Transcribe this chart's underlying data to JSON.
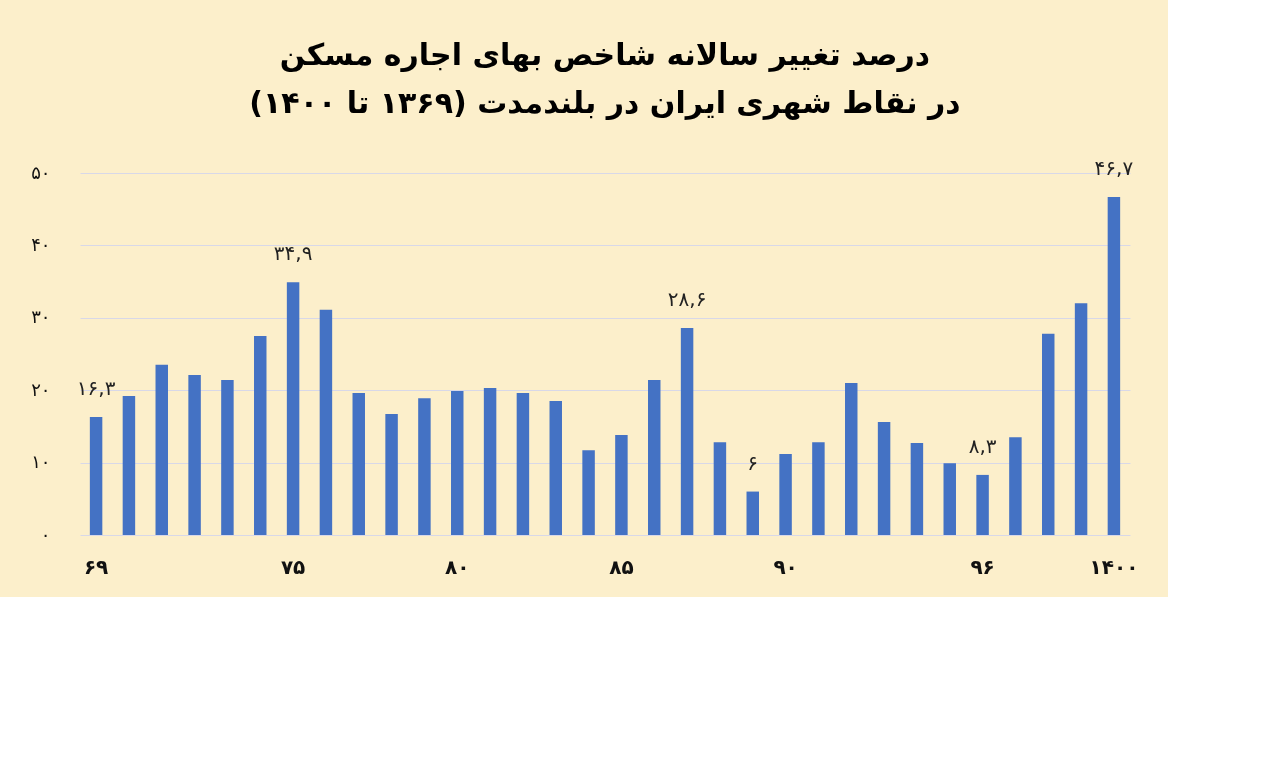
{
  "chart_data": {
    "type": "bar",
    "title": "درصد تغییر سالانه شاخص بهای اجاره مسکن",
    "subtitle": "در نقاط شهری ایران در بلندمدت (۱۳۶۹ تا ۱۴۰۰)",
    "categories": [
      "۶۹",
      null,
      null,
      null,
      null,
      null,
      "۷۵",
      null,
      null,
      null,
      null,
      "۸۰",
      null,
      null,
      null,
      null,
      "۸۵",
      null,
      null,
      null,
      null,
      "۹۰",
      null,
      null,
      null,
      null,
      null,
      "۹۶",
      null,
      null,
      null,
      "۱۴۰۰"
    ],
    "values": [
      16.3,
      19.2,
      23.5,
      22.1,
      21.4,
      27.5,
      34.9,
      31.1,
      19.6,
      16.7,
      18.9,
      19.9,
      20.3,
      19.6,
      18.5,
      11.7,
      13.8,
      21.4,
      28.6,
      12.8,
      6,
      11.2,
      12.8,
      21.0,
      15.6,
      12.7,
      9.9,
      8.3,
      13.5,
      27.8,
      32.0,
      46.7
    ],
    "value_labels": [
      "۱۶,۳",
      null,
      null,
      null,
      null,
      null,
      "۳۴,۹",
      null,
      null,
      null,
      null,
      null,
      null,
      null,
      null,
      null,
      null,
      null,
      "۲۸,۶",
      null,
      "۶",
      null,
      null,
      null,
      null,
      null,
      null,
      "۸,۳",
      null,
      null,
      null,
      "۴۶,۷"
    ],
    "color": "#4472c4",
    "ylim": [
      0,
      50
    ],
    "yticks": [
      {
        "value": 0,
        "label": "۰"
      },
      {
        "value": 10,
        "label": "۱۰"
      },
      {
        "value": 20,
        "label": "۲۰"
      },
      {
        "value": 30,
        "label": "۳۰"
      },
      {
        "value": 40,
        "label": "۴۰"
      },
      {
        "value": 50,
        "label": "۵۰"
      }
    ],
    "grid": "y"
  }
}
